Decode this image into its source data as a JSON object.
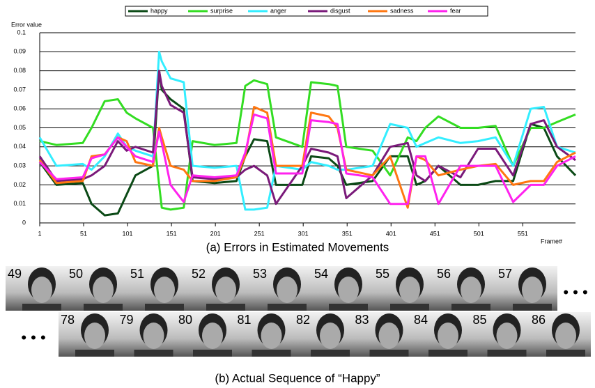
{
  "chart_data": {
    "type": "line",
    "y_label": "Error value",
    "x_label": "Frame#",
    "caption": "(a) Errors in Estimated Movements",
    "xlim": [
      1,
      611
    ],
    "xticks": [
      1,
      51,
      101,
      151,
      201,
      251,
      301,
      351,
      401,
      451,
      501,
      551
    ],
    "ylim": [
      0,
      0.1
    ],
    "yticks": [
      0,
      0.01,
      0.02,
      0.03,
      0.04,
      0.05,
      0.06,
      0.07,
      0.08,
      0.09,
      0.1
    ],
    "grid": true,
    "legend": "top",
    "x": [
      1,
      20,
      50,
      60,
      75,
      90,
      100,
      110,
      130,
      137,
      140,
      150,
      165,
      175,
      200,
      225,
      235,
      245,
      260,
      270,
      300,
      310,
      330,
      340,
      350,
      380,
      400,
      420,
      430,
      440,
      455,
      480,
      500,
      520,
      540,
      560,
      575,
      590,
      611
    ],
    "series": [
      {
        "name": "happy",
        "color": "#0b4a16",
        "values": [
          0.032,
          0.02,
          0.021,
          0.01,
          0.004,
          0.005,
          0.015,
          0.025,
          0.03,
          0.08,
          0.07,
          0.065,
          0.06,
          0.022,
          0.021,
          0.022,
          0.035,
          0.044,
          0.043,
          0.02,
          0.02,
          0.035,
          0.034,
          0.03,
          0.02,
          0.022,
          0.035,
          0.035,
          0.02,
          0.022,
          0.03,
          0.02,
          0.02,
          0.022,
          0.022,
          0.052,
          0.05,
          0.035,
          0.025
        ]
      },
      {
        "name": "surprise",
        "color": "#33dd22",
        "values": [
          0.043,
          0.041,
          0.042,
          0.05,
          0.064,
          0.065,
          0.058,
          0.055,
          0.05,
          0.02,
          0.008,
          0.007,
          0.008,
          0.043,
          0.041,
          0.042,
          0.072,
          0.075,
          0.073,
          0.045,
          0.04,
          0.074,
          0.073,
          0.072,
          0.04,
          0.038,
          0.025,
          0.045,
          0.043,
          0.05,
          0.056,
          0.05,
          0.05,
          0.051,
          0.03,
          0.05,
          0.05,
          0.053,
          0.057
        ]
      },
      {
        "name": "anger",
        "color": "#33eeff",
        "values": [
          0.045,
          0.03,
          0.031,
          0.028,
          0.035,
          0.047,
          0.04,
          0.038,
          0.035,
          0.09,
          0.085,
          0.076,
          0.074,
          0.03,
          0.029,
          0.03,
          0.007,
          0.007,
          0.008,
          0.03,
          0.028,
          0.032,
          0.03,
          0.028,
          0.028,
          0.03,
          0.052,
          0.05,
          0.04,
          0.042,
          0.045,
          0.042,
          0.043,
          0.045,
          0.03,
          0.06,
          0.061,
          0.04,
          0.037
        ]
      },
      {
        "name": "disgust",
        "color": "#7a1a7a",
        "values": [
          0.035,
          0.022,
          0.023,
          0.025,
          0.03,
          0.043,
          0.038,
          0.04,
          0.037,
          0.08,
          0.072,
          0.062,
          0.058,
          0.024,
          0.023,
          0.024,
          0.028,
          0.03,
          0.025,
          0.01,
          0.03,
          0.039,
          0.037,
          0.035,
          0.013,
          0.025,
          0.04,
          0.042,
          0.025,
          0.022,
          0.03,
          0.024,
          0.039,
          0.039,
          0.025,
          0.052,
          0.054,
          0.04,
          0.033
        ]
      },
      {
        "name": "sadness",
        "color": "#ff7711",
        "values": [
          0.033,
          0.021,
          0.022,
          0.035,
          0.036,
          0.045,
          0.043,
          0.032,
          0.03,
          0.05,
          0.045,
          0.03,
          0.028,
          0.022,
          0.022,
          0.024,
          0.035,
          0.061,
          0.058,
          0.03,
          0.03,
          0.058,
          0.056,
          0.05,
          0.028,
          0.025,
          0.035,
          0.008,
          0.035,
          0.033,
          0.025,
          0.028,
          0.03,
          0.031,
          0.02,
          0.022,
          0.022,
          0.032,
          0.037
        ]
      },
      {
        "name": "fear",
        "color": "#ff22ee",
        "values": [
          0.032,
          0.023,
          0.024,
          0.034,
          0.036,
          0.045,
          0.04,
          0.035,
          0.032,
          0.048,
          0.042,
          0.02,
          0.011,
          0.025,
          0.024,
          0.025,
          0.037,
          0.057,
          0.055,
          0.026,
          0.026,
          0.054,
          0.053,
          0.052,
          0.026,
          0.024,
          0.01,
          0.01,
          0.035,
          0.035,
          0.01,
          0.03,
          0.03,
          0.03,
          0.011,
          0.02,
          0.02,
          0.03,
          0.035
        ]
      }
    ]
  },
  "sequence": {
    "caption": "(b) Actual Sequence of “Happy”",
    "row1": [
      "49",
      "50",
      "51",
      "52",
      "53",
      "54",
      "55",
      "56",
      "57"
    ],
    "row2": [
      "78",
      "79",
      "80",
      "81",
      "82",
      "83",
      "84",
      "85",
      "86"
    ]
  }
}
